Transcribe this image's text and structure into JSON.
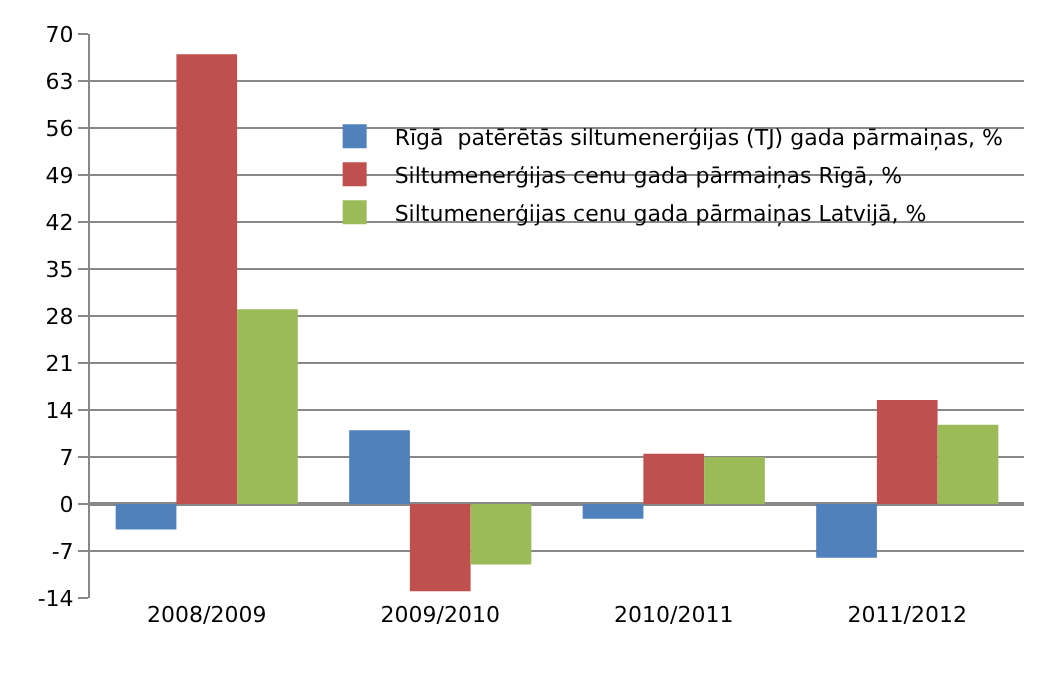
{
  "chart_data": {
    "type": "bar",
    "categories": [
      "2008/2009",
      "2009/2010",
      "2010/2011",
      "2011/2012"
    ],
    "series": [
      {
        "name": "Rīgā  patērētās siltumenerģijas (TJ) gada pārmaiņas, %",
        "color": "#4f81bd",
        "values": [
          -3.8,
          11,
          -2.2,
          -8
        ]
      },
      {
        "name": "Siltumenerģijas cenu gada pārmaiņas Rīgā, %",
        "color": "#c0504d",
        "values": [
          67,
          -13,
          7.5,
          15.5
        ]
      },
      {
        "name": "Siltumenerģijas cenu gada pārmaiņas Latvijā, %",
        "color": "#9bbb59",
        "values": [
          29,
          -9,
          7,
          11.8
        ]
      }
    ],
    "ylim": [
      -14,
      70
    ],
    "yticks": [
      -14,
      -7,
      0,
      7,
      14,
      21,
      28,
      35,
      42,
      49,
      56,
      63,
      70
    ],
    "grid": "y",
    "legend": "top right"
  }
}
